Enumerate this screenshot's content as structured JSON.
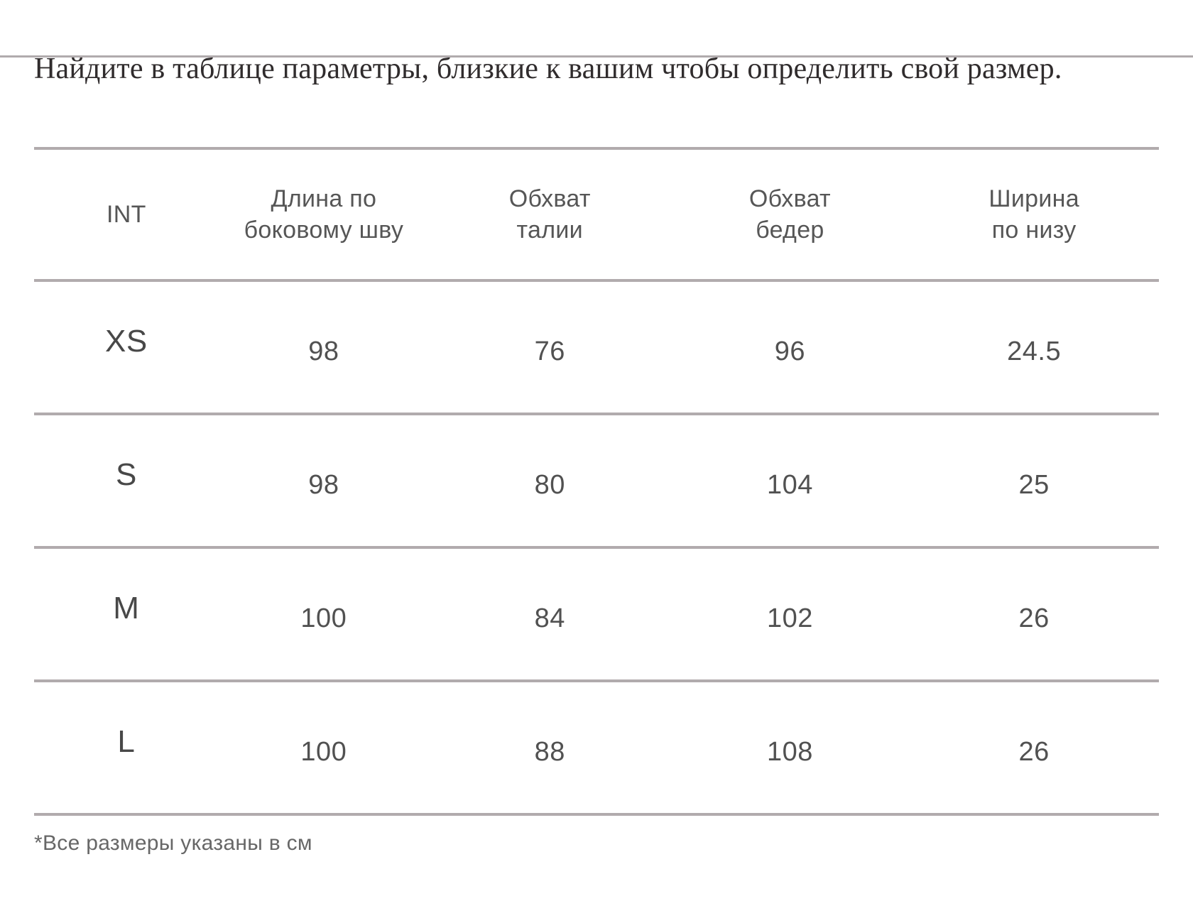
{
  "page": {
    "title": "Найдите в таблице параметры, близкие к вашим чтобы определить свой размер.",
    "footnote": "*Все размеры указаны в см"
  },
  "table": {
    "columns": [
      {
        "line1": "INT",
        "line2": ""
      },
      {
        "line1": "Длина по",
        "line2": "боковому шву"
      },
      {
        "line1": "Обхват",
        "line2": "талии"
      },
      {
        "line1": "Обхват",
        "line2": "бедер"
      },
      {
        "line1": "Ширина",
        "line2": "по низу"
      }
    ],
    "rows": [
      {
        "size": "XS",
        "values": [
          "98",
          "76",
          "96",
          "24.5"
        ]
      },
      {
        "size": "S",
        "values": [
          "98",
          "80",
          "104",
          "25"
        ]
      },
      {
        "size": "M",
        "values": [
          "100",
          "84",
          "102",
          "26"
        ]
      },
      {
        "size": "L",
        "values": [
          "100",
          "88",
          "108",
          "26"
        ]
      }
    ],
    "units_note": "см"
  },
  "colors": {
    "divider_line": "#b1abad",
    "body_text": "#4f4f4f",
    "title_text": "#302c2d",
    "background": "#ffffff"
  }
}
